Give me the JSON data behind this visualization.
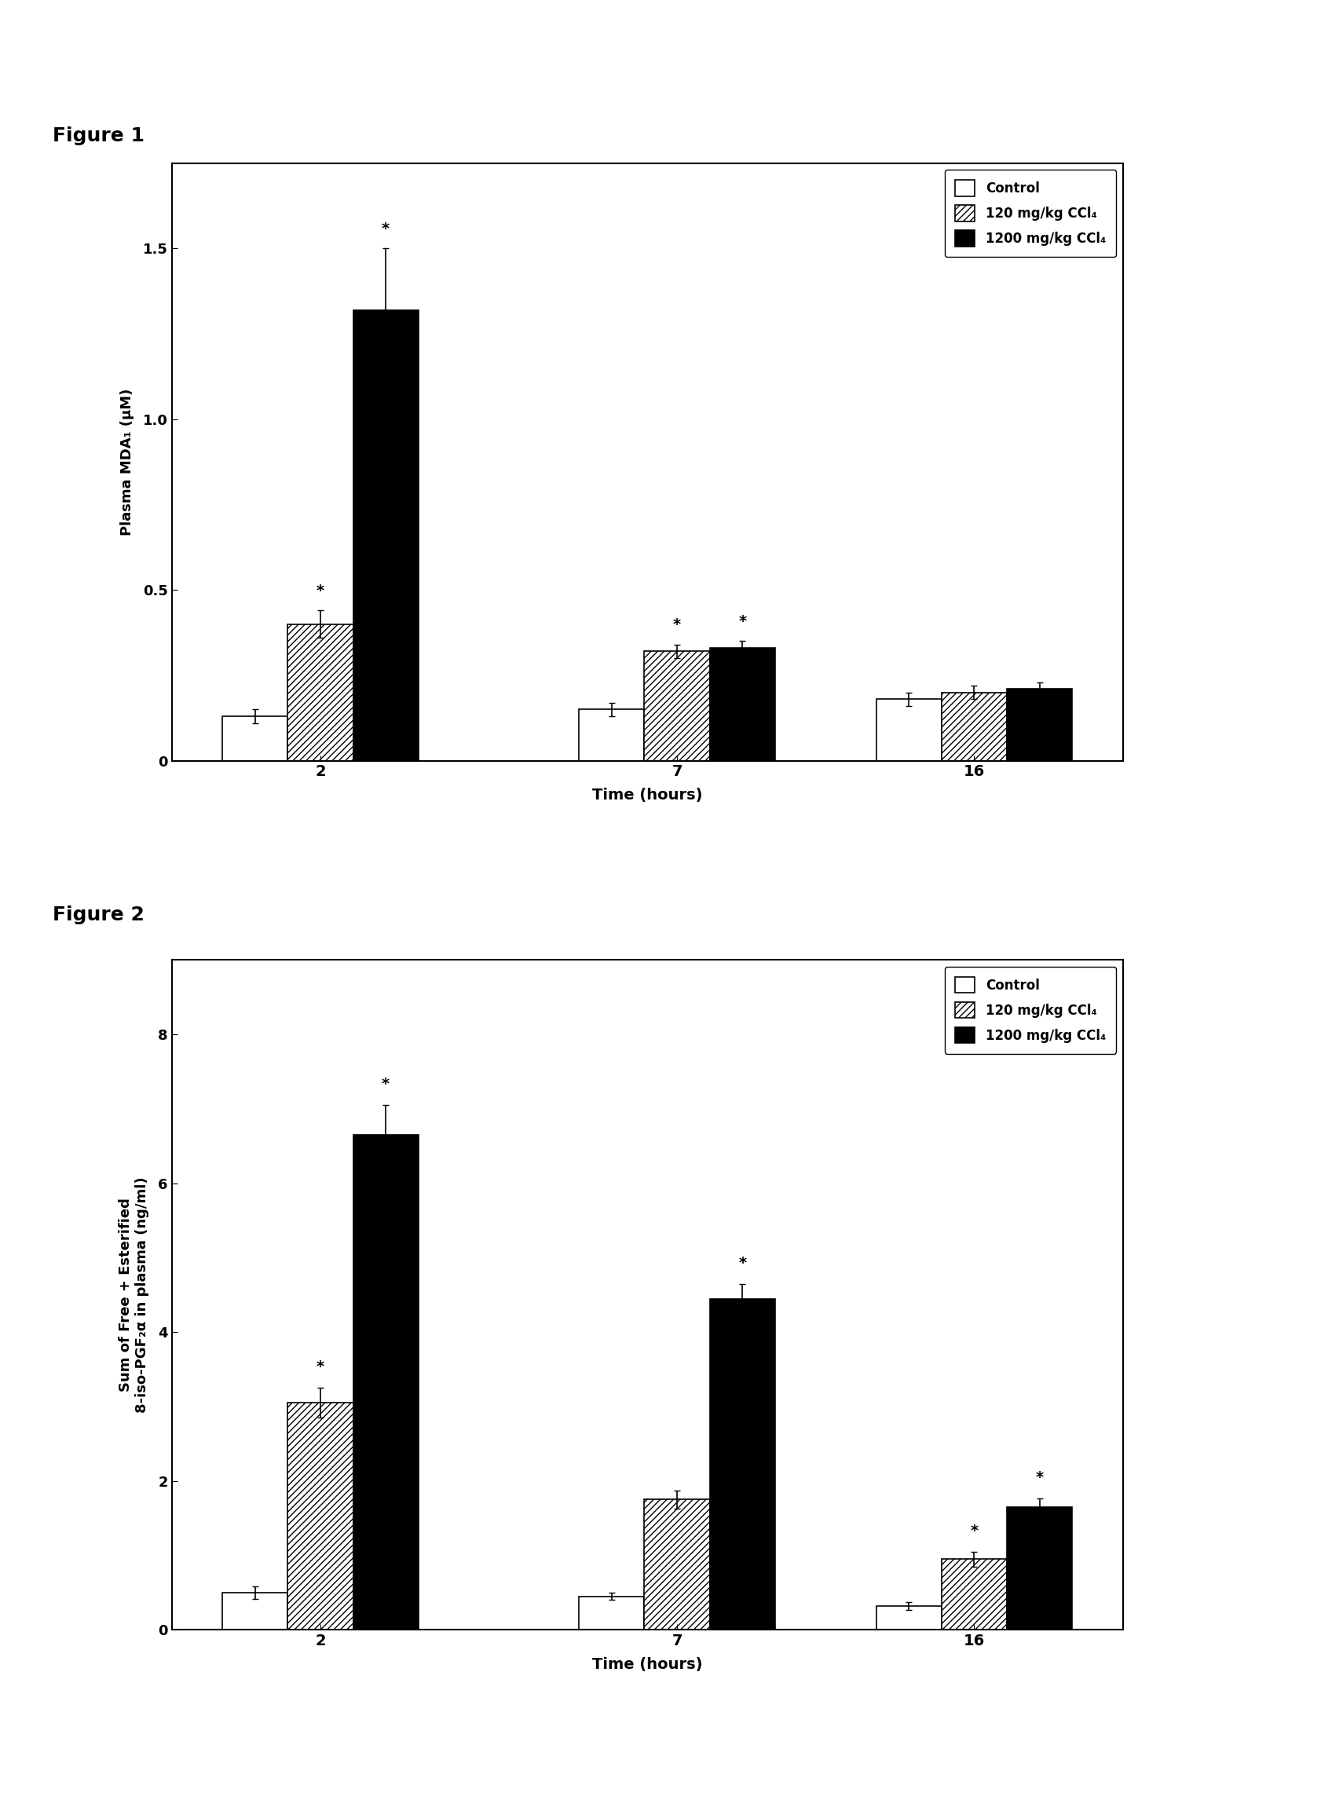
{
  "fig1_title": "Figure 1",
  "fig2_title": "Figure 2",
  "time_points": [
    "2",
    "7",
    "16"
  ],
  "fig1_ylabel": "Plasma MDA₁ (μM)",
  "fig1_xlabel": "Time (hours)",
  "fig1_ylim": [
    0,
    1.75
  ],
  "fig1_yticks": [
    0,
    0.5,
    1.0,
    1.5
  ],
  "fig1_data": {
    "control": [
      0.13,
      0.15,
      0.18
    ],
    "low_dose": [
      0.4,
      0.32,
      0.2
    ],
    "high_dose": [
      1.32,
      0.33,
      0.21
    ]
  },
  "fig1_errors": {
    "control": [
      0.02,
      0.02,
      0.02
    ],
    "low_dose": [
      0.04,
      0.02,
      0.02
    ],
    "high_dose": [
      0.18,
      0.02,
      0.02
    ]
  },
  "fig1_sig": {
    "control": [
      false,
      false,
      false
    ],
    "low_dose": [
      true,
      true,
      false
    ],
    "high_dose": [
      true,
      true,
      false
    ]
  },
  "fig2_ylabel": "Sum of Free + Esterified\n8-iso-PGF₂α in plasma (ng/ml)",
  "fig2_xlabel": "Time (hours)",
  "fig2_ylim": [
    0,
    9
  ],
  "fig2_yticks": [
    0,
    2,
    4,
    6,
    8
  ],
  "fig2_data": {
    "control": [
      0.5,
      0.45,
      0.32
    ],
    "low_dose": [
      3.05,
      1.75,
      0.95
    ],
    "high_dose": [
      6.65,
      4.45,
      1.65
    ]
  },
  "fig2_errors": {
    "control": [
      0.08,
      0.05,
      0.05
    ],
    "low_dose": [
      0.2,
      0.12,
      0.1
    ],
    "high_dose": [
      0.4,
      0.2,
      0.12
    ]
  },
  "fig2_sig": {
    "control": [
      false,
      false,
      false
    ],
    "low_dose": [
      true,
      false,
      true
    ],
    "high_dose": [
      true,
      true,
      true
    ]
  },
  "legend_labels": [
    "Control",
    "120 mg/kg CCl₄",
    "1200 mg/kg CCl₄"
  ],
  "bar_width": 0.22,
  "bar_gap": 0.25,
  "colors": {
    "control": "white",
    "low_dose": "#aaaaaa",
    "high_dose": "black"
  },
  "hatch_control": "",
  "hatch_low": "////",
  "hatch_high": ""
}
